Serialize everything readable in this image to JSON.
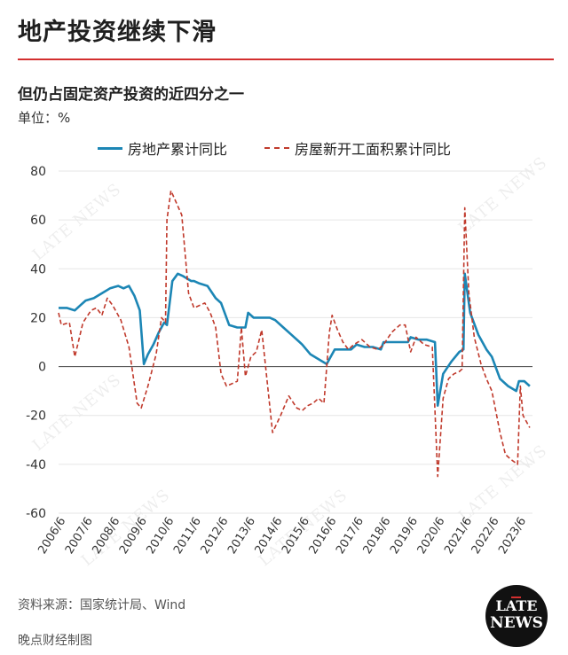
{
  "header": {
    "title": "地产投资继续下滑",
    "subtitle": "但仍占固定资产投资的近四分之一",
    "unit": "单位：%"
  },
  "legend": {
    "series1": "房地产累计同比",
    "series2": "房屋新开工面积累计同比"
  },
  "colors": {
    "accent": "#d32f2f",
    "series1": "#1c86b5",
    "series2": "#c0392b"
  },
  "chart_data": {
    "type": "line",
    "ylim": [
      -60,
      80
    ],
    "y_ticks": [
      "80",
      "60",
      "40",
      "20",
      "0",
      "-20",
      "-40",
      "-60"
    ],
    "x_ticks": [
      "2006/6",
      "2007/6",
      "2008/6",
      "2009/6",
      "2010/6",
      "2011/6",
      "2012/6",
      "2013/6",
      "2014/6",
      "2015/6",
      "2016/6",
      "2017/6",
      "2018/6",
      "2019/6",
      "2020/6",
      "2021/6",
      "2022/6",
      "2023/6"
    ],
    "series": [
      {
        "name": "房地产累计同比",
        "style": "solid",
        "points": [
          [
            2006.0,
            24
          ],
          [
            2006.3,
            24
          ],
          [
            2006.6,
            23
          ],
          [
            2006.8,
            25
          ],
          [
            2007.0,
            27
          ],
          [
            2007.3,
            28
          ],
          [
            2007.6,
            30
          ],
          [
            2007.9,
            32
          ],
          [
            2008.2,
            33
          ],
          [
            2008.4,
            32
          ],
          [
            2008.6,
            33
          ],
          [
            2008.8,
            29
          ],
          [
            2009.0,
            23
          ],
          [
            2009.15,
            1
          ],
          [
            2009.3,
            5
          ],
          [
            2009.5,
            9
          ],
          [
            2009.7,
            14
          ],
          [
            2009.9,
            18
          ],
          [
            2010.0,
            17
          ],
          [
            2010.2,
            35
          ],
          [
            2010.4,
            38
          ],
          [
            2010.6,
            37
          ],
          [
            2010.9,
            35
          ],
          [
            2011.0,
            35
          ],
          [
            2011.2,
            34
          ],
          [
            2011.5,
            33
          ],
          [
            2011.8,
            28
          ],
          [
            2012.0,
            26
          ],
          [
            2012.3,
            17
          ],
          [
            2012.6,
            16
          ],
          [
            2012.9,
            16
          ],
          [
            2013.0,
            22
          ],
          [
            2013.2,
            20
          ],
          [
            2013.5,
            20
          ],
          [
            2013.8,
            20
          ],
          [
            2014.0,
            19
          ],
          [
            2014.3,
            16
          ],
          [
            2014.6,
            13
          ],
          [
            2014.9,
            10
          ],
          [
            2015.0,
            9
          ],
          [
            2015.3,
            5
          ],
          [
            2015.6,
            3
          ],
          [
            2015.9,
            1
          ],
          [
            2016.0,
            3
          ],
          [
            2016.2,
            7
          ],
          [
            2016.5,
            7
          ],
          [
            2016.8,
            7
          ],
          [
            2017.0,
            9
          ],
          [
            2017.3,
            8
          ],
          [
            2017.6,
            8
          ],
          [
            2017.9,
            7
          ],
          [
            2018.0,
            10
          ],
          [
            2018.3,
            10
          ],
          [
            2018.6,
            10
          ],
          [
            2018.9,
            10
          ],
          [
            2019.0,
            12
          ],
          [
            2019.3,
            11
          ],
          [
            2019.6,
            11
          ],
          [
            2019.9,
            10
          ],
          [
            2020.0,
            -16
          ],
          [
            2020.2,
            -3
          ],
          [
            2020.5,
            2
          ],
          [
            2020.8,
            6
          ],
          [
            2020.95,
            7
          ],
          [
            2021.0,
            38
          ],
          [
            2021.2,
            22
          ],
          [
            2021.5,
            13
          ],
          [
            2021.8,
            7
          ],
          [
            2022.0,
            4
          ],
          [
            2022.3,
            -5
          ],
          [
            2022.6,
            -8
          ],
          [
            2022.9,
            -10
          ],
          [
            2023.0,
            -6
          ],
          [
            2023.2,
            -6
          ],
          [
            2023.4,
            -8
          ]
        ]
      },
      {
        "name": "房屋新开工面积累计同比",
        "style": "dashed",
        "points": [
          [
            2006.0,
            22
          ],
          [
            2006.1,
            17
          ],
          [
            2006.4,
            18
          ],
          [
            2006.6,
            4
          ],
          [
            2006.9,
            18
          ],
          [
            2007.2,
            23
          ],
          [
            2007.4,
            24
          ],
          [
            2007.6,
            21
          ],
          [
            2007.8,
            28
          ],
          [
            2008.0,
            25
          ],
          [
            2008.3,
            19
          ],
          [
            2008.6,
            8
          ],
          [
            2008.9,
            -15
          ],
          [
            2009.05,
            -17
          ],
          [
            2009.3,
            -8
          ],
          [
            2009.6,
            5
          ],
          [
            2009.8,
            20
          ],
          [
            2009.95,
            18
          ],
          [
            2010.0,
            60
          ],
          [
            2010.15,
            72
          ],
          [
            2010.35,
            67
          ],
          [
            2010.55,
            62
          ],
          [
            2010.8,
            30
          ],
          [
            2011.0,
            24
          ],
          [
            2011.2,
            25
          ],
          [
            2011.4,
            26
          ],
          [
            2011.6,
            22
          ],
          [
            2011.8,
            16
          ],
          [
            2012.0,
            -3
          ],
          [
            2012.2,
            -8
          ],
          [
            2012.4,
            -7
          ],
          [
            2012.6,
            -6
          ],
          [
            2012.75,
            16
          ],
          [
            2012.9,
            -4
          ],
          [
            2013.1,
            4
          ],
          [
            2013.3,
            6
          ],
          [
            2013.5,
            15
          ],
          [
            2013.7,
            -6
          ],
          [
            2013.9,
            -27
          ],
          [
            2014.2,
            -20
          ],
          [
            2014.5,
            -12
          ],
          [
            2014.8,
            -17
          ],
          [
            2015.0,
            -18
          ],
          [
            2015.2,
            -16
          ],
          [
            2015.4,
            -15
          ],
          [
            2015.6,
            -13
          ],
          [
            2015.8,
            -15
          ],
          [
            2016.0,
            14
          ],
          [
            2016.1,
            21
          ],
          [
            2016.3,
            15
          ],
          [
            2016.5,
            10
          ],
          [
            2016.7,
            7
          ],
          [
            2016.9,
            9
          ],
          [
            2017.2,
            11
          ],
          [
            2017.5,
            8
          ],
          [
            2017.8,
            7
          ],
          [
            2018.0,
            9
          ],
          [
            2018.3,
            14
          ],
          [
            2018.6,
            17
          ],
          [
            2018.8,
            17
          ],
          [
            2019.0,
            6
          ],
          [
            2019.2,
            12
          ],
          [
            2019.5,
            9
          ],
          [
            2019.8,
            8
          ],
          [
            2020.0,
            -45
          ],
          [
            2020.2,
            -13
          ],
          [
            2020.4,
            -5
          ],
          [
            2020.6,
            -3
          ],
          [
            2020.8,
            -2
          ],
          [
            2020.9,
            -1
          ],
          [
            2021.0,
            65
          ],
          [
            2021.15,
            30
          ],
          [
            2021.35,
            12
          ],
          [
            2021.6,
            1
          ],
          [
            2021.8,
            -5
          ],
          [
            2022.0,
            -10
          ],
          [
            2022.3,
            -27
          ],
          [
            2022.5,
            -36
          ],
          [
            2022.7,
            -38
          ],
          [
            2022.95,
            -40
          ],
          [
            2023.05,
            -8
          ],
          [
            2023.15,
            -20
          ],
          [
            2023.4,
            -25
          ]
        ]
      }
    ]
  },
  "source_text": "资料来源：国家统计局、Wind",
  "footer_text": "晚点财经制图",
  "logo": {
    "line1": "LATE",
    "line2": "NEWS"
  },
  "watermark": "LATE NEWS"
}
